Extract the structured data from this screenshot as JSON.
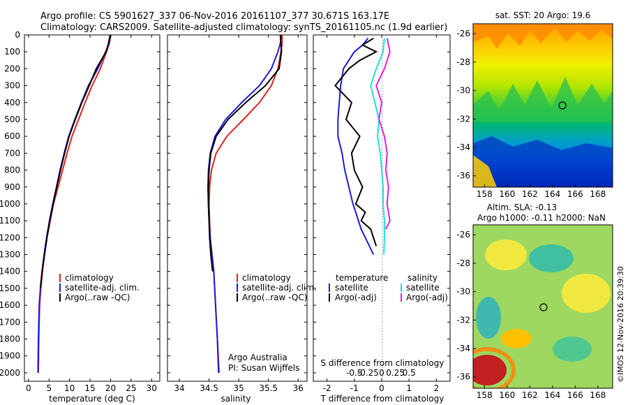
{
  "header": {
    "line1": "Argo profile: CS 5901627_337 06-Nov-2016 20161107_377 30.671S 163.17E",
    "line2": "Climatology: CARS2009. Satellite-adjusted climatology: synTS_20161105.nc (1.9d earlier)"
  },
  "credits": {
    "agency": "Argo Australia",
    "pi": "PI: Susan Wijffels",
    "watermark": "©IMOS 12-Nov-2016 20:39:30"
  },
  "colors": {
    "climatology": "#e02020",
    "satellite": "#1a1ae0",
    "argo": "#000000",
    "sal_satellite": "#20e0e0",
    "sal_argo": "#e020e0"
  },
  "chart_data": [
    {
      "type": "line",
      "id": "temperature",
      "xlabel": "temperature (deg C)",
      "ylabel": "",
      "xlim": [
        -1,
        32
      ],
      "ylim": [
        2050,
        0
      ],
      "xticks": [
        0,
        5,
        10,
        15,
        20,
        25,
        30
      ],
      "yticks": [
        0,
        100,
        200,
        300,
        400,
        500,
        600,
        700,
        800,
        900,
        1000,
        1100,
        1200,
        1300,
        1400,
        1500,
        1600,
        1700,
        1800,
        1900,
        2000
      ],
      "legend": [
        "climatology",
        "satellite-adj. clim.",
        "Argo(..raw -QC)"
      ],
      "series": [
        {
          "name": "climatology",
          "color": "#e02020",
          "x": [
            20.1,
            19.7,
            19.0,
            17.5,
            15.5,
            13.8,
            12.2,
            10.6,
            9.4,
            8.3,
            7.2,
            6.1,
            5.3,
            4.5,
            3.9,
            3.4,
            3.0,
            2.7,
            2.5,
            2.4
          ],
          "y": [
            0,
            50,
            100,
            200,
            300,
            400,
            500,
            600,
            700,
            800,
            900,
            1000,
            1100,
            1200,
            1300,
            1400,
            1500,
            1600,
            1800,
            2000
          ]
        },
        {
          "name": "satellite-adj. clim.",
          "color": "#1a1ae0",
          "x": [
            20.0,
            19.6,
            18.8,
            16.9,
            14.6,
            12.9,
            11.3,
            9.8,
            8.7,
            7.7,
            6.8,
            5.9,
            5.1,
            4.4,
            3.8,
            3.3,
            2.9,
            2.6,
            2.4,
            2.3
          ],
          "y": [
            0,
            50,
            100,
            200,
            300,
            400,
            500,
            600,
            700,
            800,
            900,
            1000,
            1100,
            1200,
            1300,
            1400,
            1500,
            1600,
            1800,
            2000
          ]
        },
        {
          "name": "Argo(..raw -QC)",
          "color": "#000000",
          "x": [
            19.9,
            19.5,
            18.9,
            16.5,
            14.8,
            13.0,
            11.4,
            9.9,
            8.8,
            7.8,
            6.9,
            6.0,
            5.2,
            4.5,
            3.9,
            3.3,
            2.9
          ],
          "y": [
            0,
            50,
            100,
            200,
            300,
            400,
            500,
            600,
            700,
            800,
            900,
            1000,
            1100,
            1200,
            1300,
            1400,
            1500
          ]
        }
      ]
    },
    {
      "type": "line",
      "id": "salinity",
      "xlabel": "salinity",
      "xlim": [
        33.8,
        36.15
      ],
      "ylim": [
        2050,
        0
      ],
      "xticks": [
        34,
        34.5,
        35,
        35.5,
        36
      ],
      "legend": [
        "climatology",
        "satellite-adj. clim.",
        "Argo(..raw -QC)"
      ],
      "series": [
        {
          "name": "climatology",
          "color": "#e02020",
          "x": [
            35.73,
            35.73,
            35.71,
            35.66,
            35.55,
            35.35,
            35.08,
            34.8,
            34.62,
            34.54,
            34.51,
            34.5,
            34.51,
            34.52,
            34.55,
            34.58,
            34.61,
            34.64,
            34.67
          ],
          "y": [
            0,
            50,
            100,
            200,
            300,
            400,
            500,
            600,
            700,
            800,
            900,
            1000,
            1100,
            1200,
            1300,
            1400,
            1600,
            1800,
            2000
          ]
        },
        {
          "name": "satellite-adj. clim.",
          "color": "#1a1ae0",
          "x": [
            35.72,
            35.7,
            35.66,
            35.55,
            35.35,
            35.05,
            34.78,
            34.6,
            34.52,
            34.49,
            34.48,
            34.49,
            34.5,
            34.52,
            34.55,
            34.58,
            34.61,
            34.64,
            34.66
          ],
          "y": [
            0,
            50,
            100,
            200,
            300,
            400,
            500,
            600,
            700,
            800,
            900,
            1000,
            1100,
            1200,
            1300,
            1400,
            1600,
            1800,
            2000
          ]
        },
        {
          "name": "Argo(..raw -QC)",
          "color": "#000000",
          "x": [
            35.7,
            35.71,
            35.72,
            35.68,
            35.45,
            35.12,
            34.82,
            34.62,
            34.53,
            34.5,
            34.49,
            34.49,
            34.5,
            34.51,
            34.53,
            34.56
          ],
          "y": [
            0,
            50,
            100,
            200,
            300,
            400,
            500,
            600,
            700,
            800,
            900,
            1000,
            1100,
            1200,
            1300,
            1400
          ]
        }
      ]
    },
    {
      "type": "line",
      "id": "difference",
      "xlabel": "T difference from climatology",
      "xlabel_top": "S difference from climatology",
      "xlim": [
        -2.5,
        2.5
      ],
      "ylim": [
        2050,
        0
      ],
      "xticks": [
        -2,
        -1,
        0,
        1,
        2
      ],
      "xticks_s": [
        "-0.5",
        "-0.25",
        "0",
        "0.25",
        "0.5"
      ],
      "legend_t_title": "temperature",
      "legend_s_title": "salinity",
      "legend_t": [
        "satellite",
        "Argo(-adj)"
      ],
      "legend_s": [
        "satellite",
        "Argo(-adj)"
      ],
      "series": [
        {
          "name": "satellite",
          "color": "#1a1ae0",
          "x": [
            -0.5,
            -0.7,
            -1.0,
            -1.4,
            -1.5,
            -1.55,
            -1.6,
            -1.6,
            -1.45,
            -1.35,
            -1.2,
            -1.05,
            -0.95,
            -0.85,
            -0.75,
            -0.6,
            -0.45,
            -0.3
          ],
          "y": [
            20,
            60,
            100,
            200,
            300,
            400,
            500,
            600,
            700,
            800,
            900,
            1000,
            1050,
            1100,
            1150,
            1200,
            1250,
            1300
          ]
        },
        {
          "name": "Argo(-adj)",
          "color": "#000000",
          "x": [
            -0.3,
            -0.7,
            -0.2,
            -0.8,
            -1.2,
            -1.7,
            -1.1,
            -1.3,
            -0.8,
            -1.1,
            -1.0,
            -0.7,
            -0.95,
            -0.6,
            -0.75,
            -0.4,
            -0.3,
            -0.2
          ],
          "y": [
            20,
            60,
            100,
            150,
            200,
            300,
            400,
            500,
            600,
            700,
            800,
            900,
            1000,
            1050,
            1100,
            1150,
            1200,
            1250
          ]
        },
        {
          "name": "salinity satellite",
          "color": "#20e0e0",
          "x": [
            0.1,
            0.05,
            -0.2,
            -0.4,
            -0.25,
            -0.1,
            -0.15,
            -0.05,
            0.0,
            0.05,
            0.05,
            0.1,
            0.1,
            0.08
          ],
          "y": [
            20,
            100,
            200,
            300,
            400,
            500,
            600,
            700,
            800,
            900,
            1000,
            1100,
            1200,
            1300
          ]
        },
        {
          "name": "salinity Argo(-adj)",
          "color": "#e020e0",
          "x": [
            0.2,
            0.3,
            0.1,
            -0.2,
            0.0,
            -0.1,
            0.1,
            0.2,
            0.15,
            0.25,
            0.2,
            0.3,
            0.15
          ],
          "y": [
            20,
            100,
            200,
            300,
            400,
            500,
            600,
            700,
            800,
            900,
            1000,
            1100,
            1150
          ]
        }
      ]
    },
    {
      "type": "heatmap",
      "id": "sst_map",
      "title": "sat. SST: 20 Argo: 19.6",
      "xlim": [
        157,
        169.3
      ],
      "ylim": [
        -36.8,
        -25.3
      ],
      "xticks": [
        158,
        160,
        162,
        164,
        166,
        168
      ],
      "yticks": [
        -26,
        -28,
        -30,
        -32,
        -34,
        -36
      ],
      "marker": {
        "lon": 163.17,
        "lat": -30.671
      }
    },
    {
      "type": "heatmap",
      "id": "sla_map",
      "title_line1": "Altim. SLA: -0.13",
      "title_line2": "Argo h1000: -0.11 h2000: NaN",
      "xlim": [
        157,
        169.3
      ],
      "ylim": [
        -36.8,
        -25.3
      ],
      "xticks": [
        158,
        160,
        162,
        164,
        166,
        168
      ],
      "yticks": [
        -26,
        -28,
        -30,
        -32,
        -34,
        -36
      ],
      "marker": {
        "lon": 163.17,
        "lat": -30.671
      }
    }
  ]
}
